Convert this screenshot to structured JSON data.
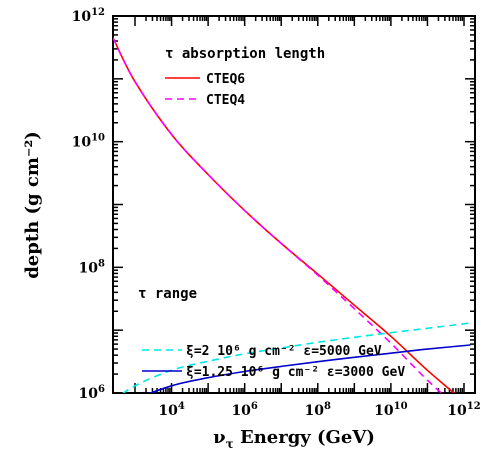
{
  "chart_data": {
    "type": "line",
    "xscale": "log",
    "yscale": "log",
    "xlim": [
      250,
      2000000000000.0
    ],
    "ylim": [
      1000000.0,
      1000000000000.0
    ],
    "grid": false,
    "xlabel": {
      "symbol": "ν",
      "sub": "τ",
      "text": " Energy (GeV)"
    },
    "ylabel": "depth (g cm⁻²)",
    "xticks": [
      {
        "value": 10000.0,
        "base": "10",
        "exp": "4"
      },
      {
        "value": 1000000.0,
        "base": "10",
        "exp": "6"
      },
      {
        "value": 100000000.0,
        "base": "10",
        "exp": "8"
      },
      {
        "value": 10000000000.0,
        "base": "10",
        "exp": "10"
      },
      {
        "value": 1000000000000.0,
        "base": "10",
        "exp": "12"
      }
    ],
    "yticks": [
      {
        "value": 1000000.0,
        "base": "10",
        "exp": "6"
      },
      {
        "value": 100000000.0,
        "base": "10",
        "exp": "8"
      },
      {
        "value": 10000000000.0,
        "base": "10",
        "exp": "10"
      },
      {
        "value": 1000000000000.0,
        "base": "10",
        "exp": "12"
      }
    ],
    "annotations": {
      "absorption": "τ absorption length",
      "range": "τ range"
    },
    "series": [
      {
        "name": "CTEQ6",
        "color": "#ff0000",
        "dash": false,
        "group": "absorption",
        "x": [
          250,
          1000.0,
          10000.0,
          100000.0,
          1000000.0,
          10000000.0,
          100000000.0,
          1000000000.0,
          10000000000.0,
          100000000000.0,
          1500000000000.0
        ],
        "y": [
          450000000000.0,
          90000000000.0,
          13000000000.0,
          3000000000.0,
          800000000.0,
          240000000.0,
          78000000.0,
          25000000.0,
          8000000.0,
          2300000.0,
          600000.0
        ]
      },
      {
        "name": "CTEQ4",
        "color": "#ff00ff",
        "dash": true,
        "group": "absorption",
        "x": [
          250,
          1000.0,
          10000.0,
          100000.0,
          1000000.0,
          10000000.0,
          100000000.0,
          1000000000.0,
          10000000000.0,
          100000000000.0,
          1500000000000.0
        ],
        "y": [
          450000000000.0,
          90000000000.0,
          13000000000.0,
          3000000000.0,
          800000000.0,
          240000000.0,
          75000000.0,
          22000000.0,
          6200000.0,
          1600000.0,
          380000.0
        ]
      },
      {
        "name": "ξ=2 10⁶ g cm⁻² ε=5000 GeV",
        "color": "#00e5e5",
        "dash": true,
        "group": "range",
        "x": [
          250,
          1000.0,
          10000.0,
          100000.0,
          1000000.0,
          10000000.0,
          100000000.0,
          1000000000.0,
          10000000000.0,
          100000000000.0,
          1500000000000.0
        ],
        "y": [
          750000.0,
          1300000.0,
          2300000.0,
          3200000.0,
          4200000.0,
          5200000.0,
          6400000.0,
          7700000.0,
          9100000.0,
          10700000.0,
          13000000.0
        ]
      },
      {
        "name": "ξ=1.25 10⁶ g cm⁻² ε=3000 GeV",
        "color": "#0000cc",
        "dash": false,
        "group": "range",
        "x": [
          250,
          1000.0,
          10000.0,
          100000.0,
          1000000.0,
          10000000.0,
          100000000.0,
          1000000000.0,
          10000000000.0,
          100000000000.0,
          1500000000000.0
        ],
        "y": [
          430000.0,
          770000.0,
          1300000.0,
          1750000.0,
          2200000.0,
          2650000.0,
          3150000.0,
          3700000.0,
          4300000.0,
          5000000.0,
          5800000.0
        ]
      }
    ],
    "legend": [
      {
        "label": "CTEQ6",
        "color": "#ff0000",
        "dash": false
      },
      {
        "label": "CTEQ4",
        "color": "#ff00ff",
        "dash": true
      },
      {
        "label": "ξ=2 10⁶ g cm⁻² ε=5000 GeV",
        "color": "#00e5e5",
        "dash": true
      },
      {
        "label": "ξ=1.25 10⁶ g cm⁻² ε=3000 GeV",
        "color": "#0000cc",
        "dash": false
      }
    ]
  }
}
